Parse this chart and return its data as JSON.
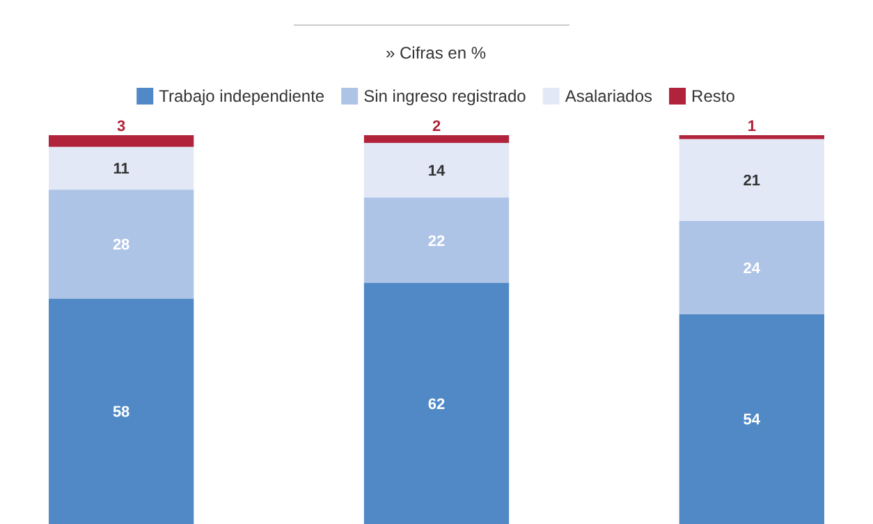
{
  "chart_data": {
    "type": "bar",
    "subtitle": "» Cifras en %",
    "categories": [
      null,
      null,
      null
    ],
    "stacked": true,
    "ylim": [
      0,
      100
    ],
    "data_labels": true,
    "legend": "top",
    "series": [
      {
        "name": "Trabajo independiente",
        "color": "#5089c6",
        "values": [
          58,
          62,
          54
        ]
      },
      {
        "name": "Sin ingreso registrado",
        "color": "#aec4e6",
        "values": [
          28,
          22,
          24
        ]
      },
      {
        "name": "Asalariados",
        "color": "#e2e8f6",
        "values": [
          11,
          14,
          21
        ]
      },
      {
        "name": "Resto",
        "color": "#b0233a",
        "values": [
          3,
          2,
          1
        ]
      }
    ]
  }
}
